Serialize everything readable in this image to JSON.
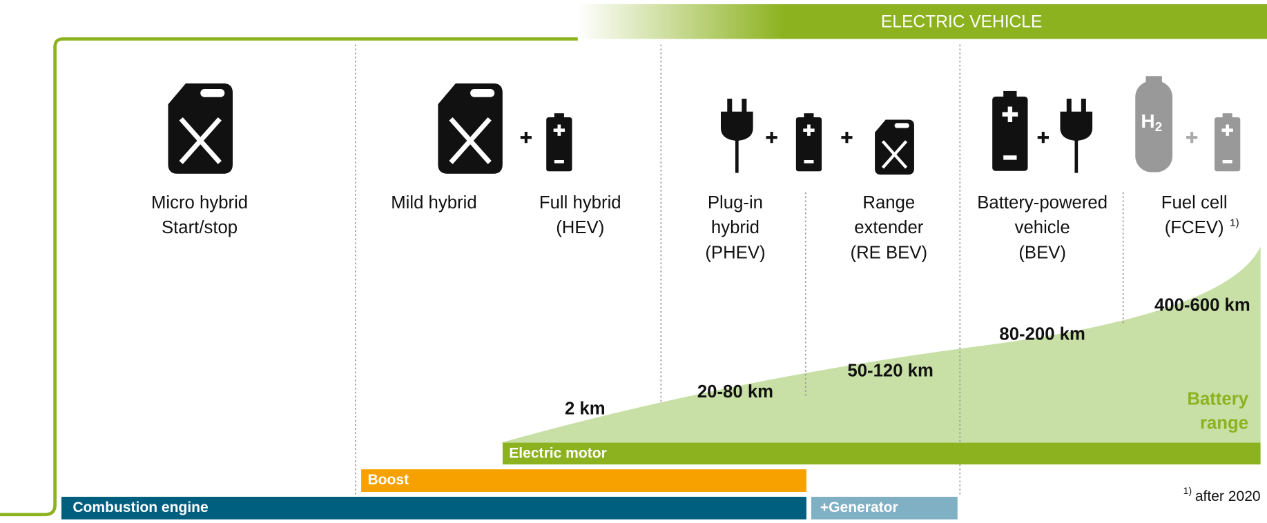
{
  "header": {
    "title": "ELECTRIC VEHICLE"
  },
  "columns": [
    {
      "lines": [
        "Micro hybrid",
        "Start/stop"
      ]
    },
    {
      "lines": [
        "Mild hybrid"
      ]
    },
    {
      "lines": [
        "Full hybrid",
        "(HEV)"
      ]
    },
    {
      "lines": [
        "Plug-in",
        "hybrid",
        "(PHEV)"
      ]
    },
    {
      "lines": [
        "Range",
        "extender",
        "(RE BEV)"
      ]
    },
    {
      "lines": [
        "Battery-powered",
        "vehicle",
        "(BEV)"
      ]
    },
    {
      "lines": [
        "Fuel cell",
        "(FCEV)"
      ],
      "footnote_mark": "1)"
    }
  ],
  "ranges": [
    "2 km",
    "20-80 km",
    "50-120 km",
    "80-200 km",
    "400-600 km"
  ],
  "battery_range": [
    "Battery",
    "range"
  ],
  "tank_label": {
    "main": "H",
    "sub": "2"
  },
  "bars": {
    "electric_motor": "Electric motor",
    "boost": "Boost",
    "combustion_engine": "Combustion engine",
    "generator": "+Generator"
  },
  "footnote": {
    "mark": "1)",
    "text": "after 2020"
  }
}
